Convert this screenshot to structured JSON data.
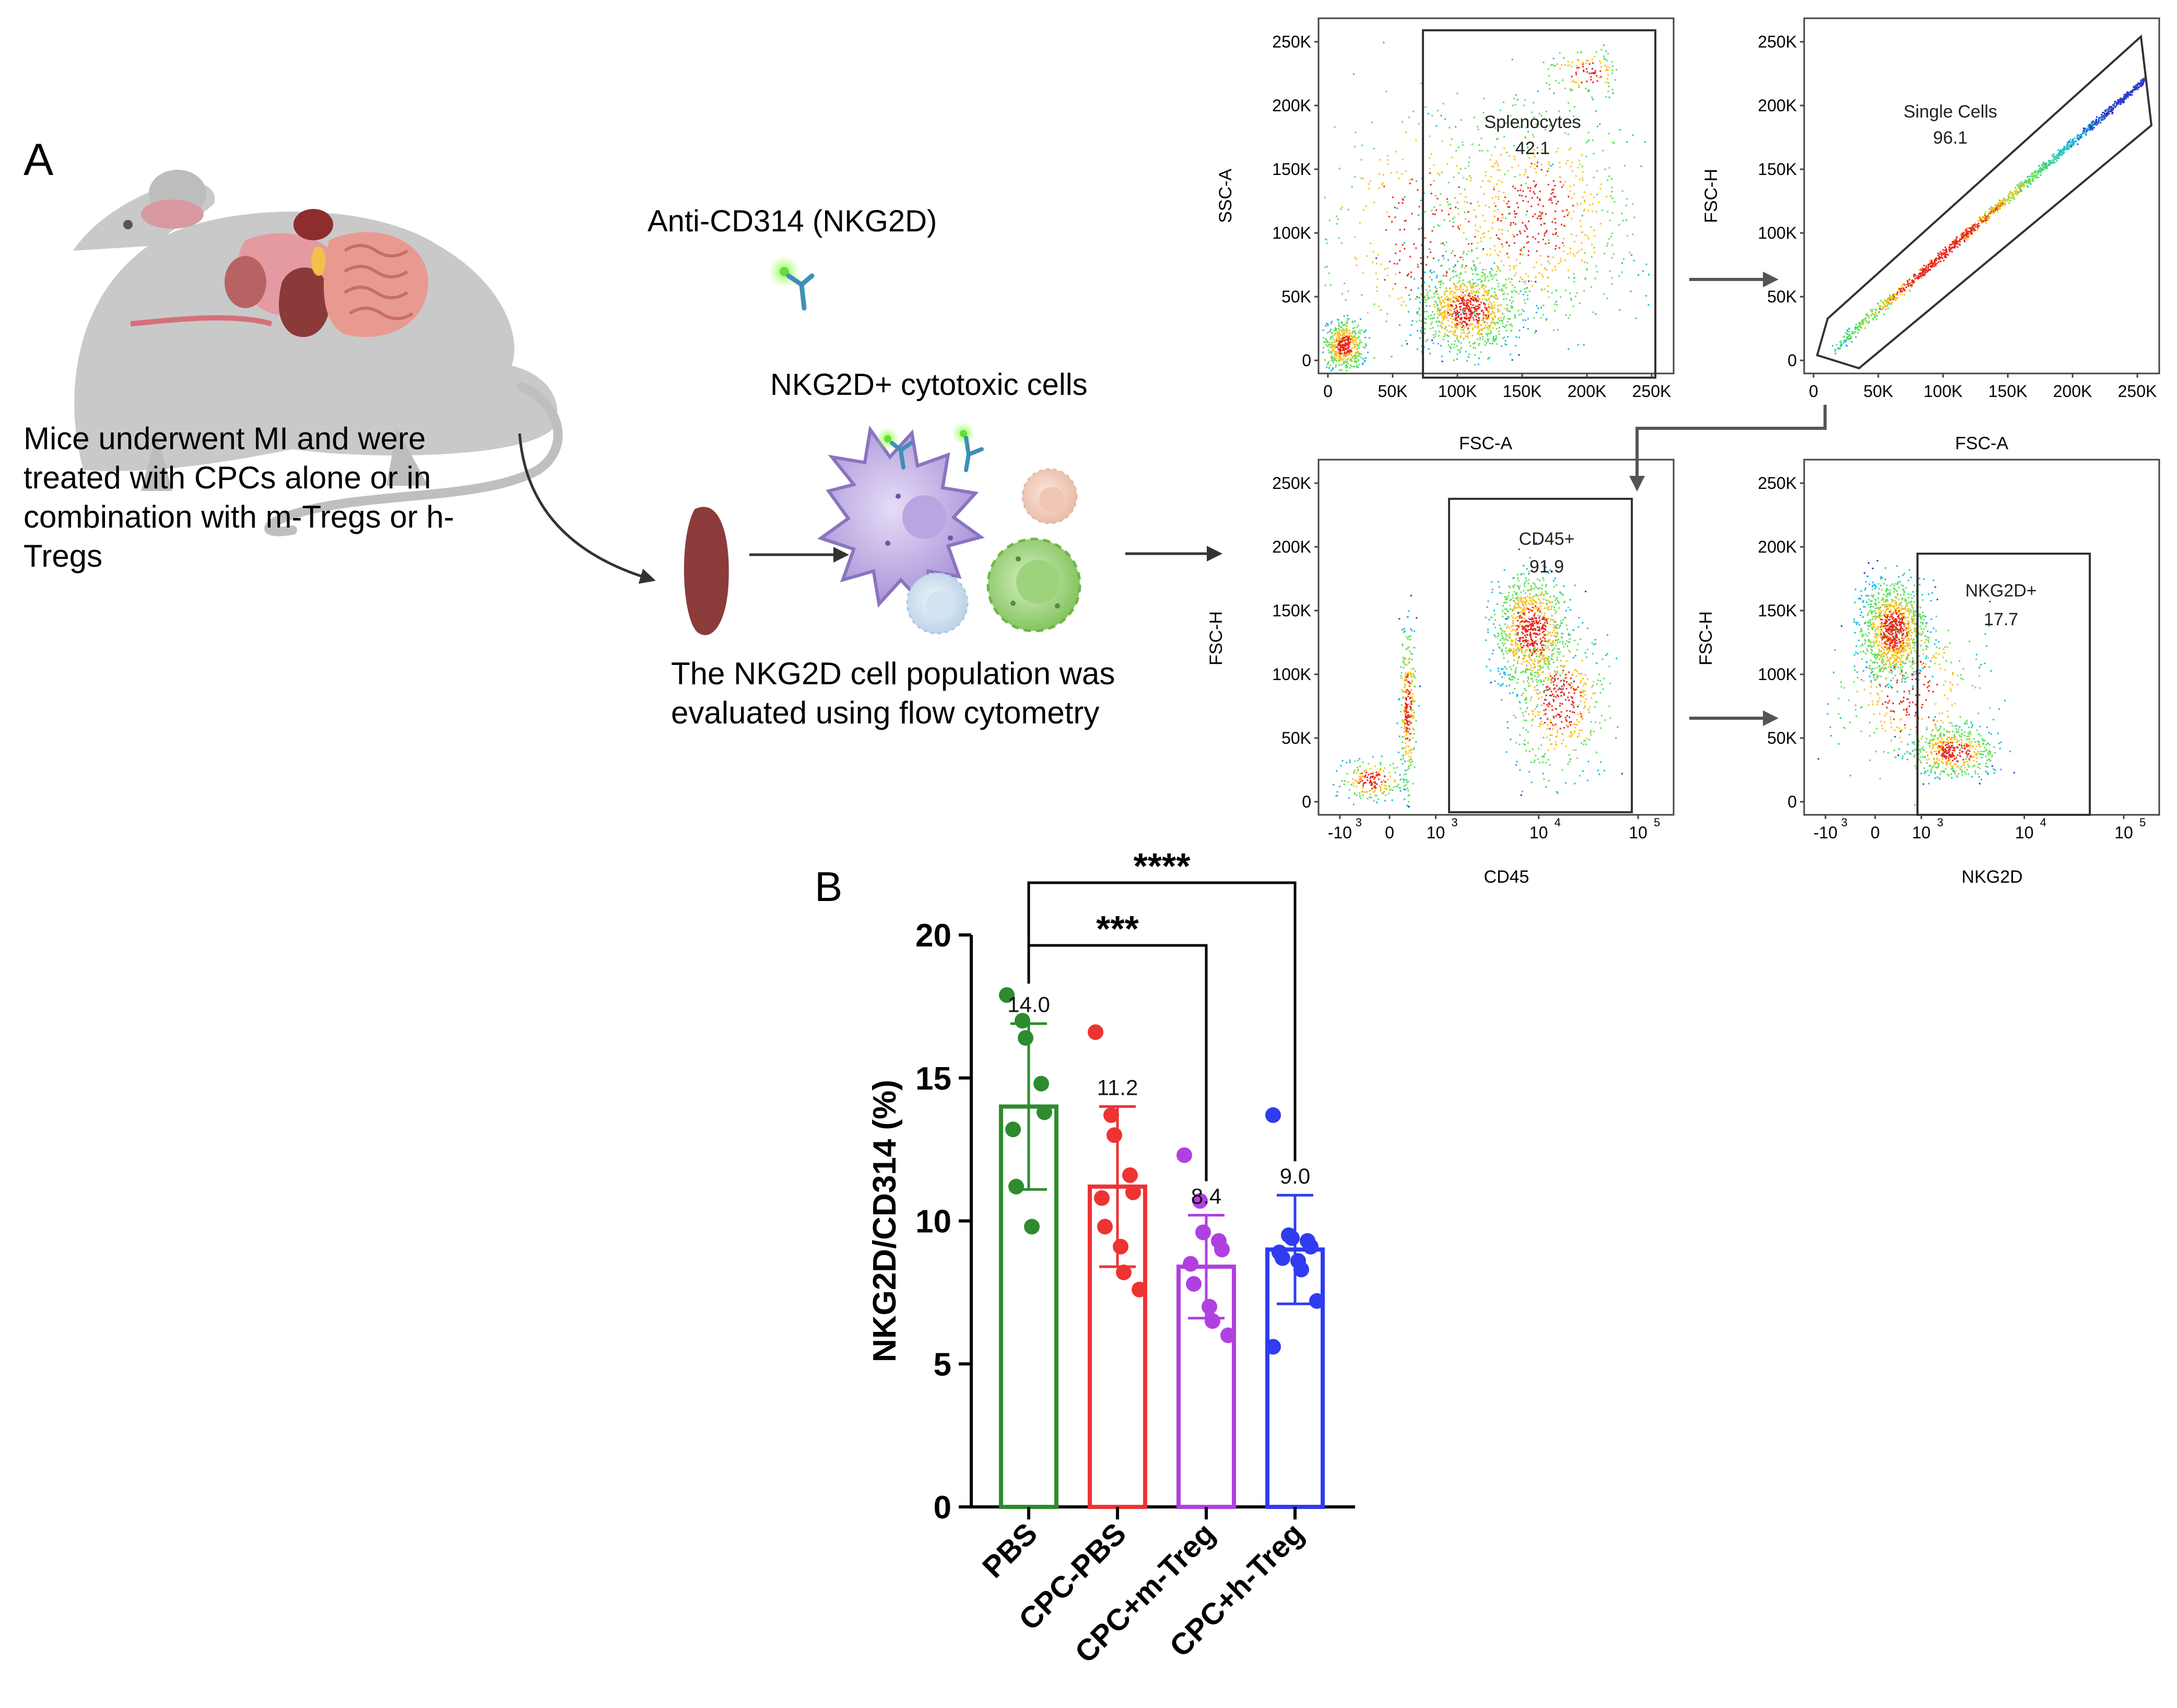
{
  "panel_a": {
    "label": "A",
    "mouse_caption": [
      "Mice underwent MI and were",
      "treated with CPCs alone or in",
      "combination with m-Tregs or h-",
      "Tregs"
    ],
    "antibody_label": "Anti-CD314 (NKG2D)",
    "cells_label": "NKG2D+ cytotoxic cells",
    "flow_caption": [
      "The NKG2D cell population was",
      "evaluated  using flow cytometry"
    ],
    "flow_plots": [
      {
        "xlabel": "FSC-A",
        "ylabel": "SSC-A",
        "xticks": [
          "0",
          "50K",
          "100K",
          "150K",
          "200K",
          "250K"
        ],
        "yticks": [
          "0",
          "50K",
          "100K",
          "150K",
          "200K",
          "250K"
        ],
        "gate_name": "Splenocytes",
        "gate_value": "42.1"
      },
      {
        "xlabel": "FSC-A",
        "ylabel": "FSC-H",
        "xticks": [
          "0",
          "50K",
          "100K",
          "150K",
          "200K",
          "250K"
        ],
        "yticks": [
          "0",
          "50K",
          "100K",
          "150K",
          "200K",
          "250K"
        ],
        "gate_name": "Single Cells",
        "gate_value": "96.1"
      },
      {
        "xlabel": "CD45",
        "ylabel": "FSC-H",
        "xticks": [
          "-10",
          "0",
          "10",
          "10",
          "10"
        ],
        "xtick_exponents": [
          "3",
          "",
          "3",
          "4",
          "5"
        ],
        "yticks": [
          "0",
          "50K",
          "100K",
          "150K",
          "200K",
          "250K"
        ],
        "gate_name": "CD45+",
        "gate_value": "91.9"
      },
      {
        "xlabel": "NKG2D",
        "ylabel": "FSC-H",
        "xticks": [
          "-10",
          "0",
          "10",
          "10",
          "10"
        ],
        "xtick_exponents": [
          "3",
          "",
          "3",
          "4",
          "5"
        ],
        "yticks": [
          "0",
          "50K",
          "100K",
          "150K",
          "200K",
          "250K"
        ],
        "gate_name": "NKG2D+",
        "gate_value": "17.7"
      }
    ]
  },
  "panel_b": {
    "label": "B"
  },
  "chart_data": {
    "type": "bar",
    "title": "",
    "xlabel": "",
    "ylabel": "NKG2D/CD314 (%)",
    "ylim": [
      0,
      20
    ],
    "yticks": [
      0,
      5,
      10,
      15,
      20
    ],
    "categories": [
      "PBS",
      "CPC-PBS",
      "CPC+m-Treg",
      "CPC+h-Treg"
    ],
    "values": [
      14.0,
      11.2,
      8.4,
      9.0
    ],
    "value_labels": [
      "14.0",
      "11.2",
      "8.4",
      "9.0"
    ],
    "error_sd": [
      2.9,
      2.8,
      1.8,
      1.9
    ],
    "colors": [
      "#2e8b2e",
      "#ee3333",
      "#b040e0",
      "#2f3cf0"
    ],
    "points": [
      [
        17.9,
        17.0,
        16.4,
        14.8,
        13.8,
        13.2,
        11.2,
        9.8
      ],
      [
        16.6,
        13.7,
        13.0,
        11.6,
        11.0,
        10.8,
        9.8,
        9.1,
        8.2,
        7.6
      ],
      [
        12.3,
        10.7,
        9.6,
        9.3,
        9.0,
        8.5,
        7.8,
        7.0,
        6.5,
        6.0
      ],
      [
        13.7,
        9.5,
        9.4,
        9.3,
        9.1,
        8.9,
        8.7,
        8.6,
        8.3,
        7.2,
        5.6
      ]
    ],
    "significance": [
      {
        "from": "PBS",
        "to": "CPC+m-Treg",
        "label": "***"
      },
      {
        "from": "PBS",
        "to": "CPC+h-Treg",
        "label": "****"
      }
    ]
  }
}
